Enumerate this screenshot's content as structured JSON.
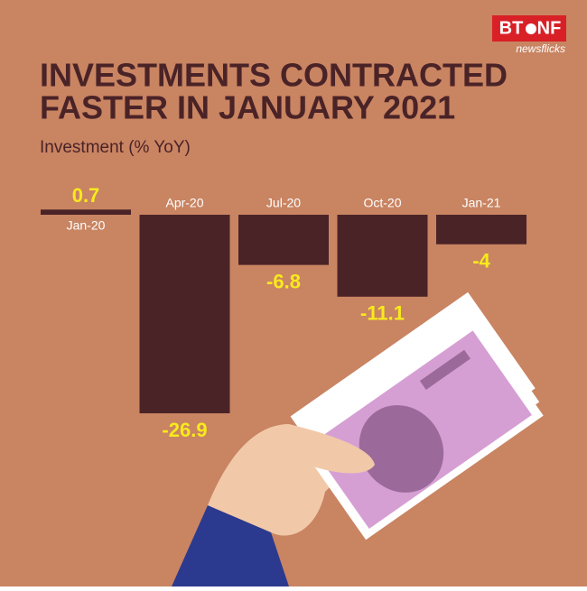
{
  "logo": {
    "left": "BT",
    "right": "NF",
    "tagline": "newsflicks"
  },
  "chart_data": {
    "type": "bar",
    "title": [
      "INVESTMENTS CONTRACTED",
      "FASTER IN JANUARY 2021"
    ],
    "subtitle": "Investment (% YoY)",
    "categories": [
      "Jan-20",
      "Apr-20",
      "Jul-20",
      "Oct-20",
      "Jan-21"
    ],
    "values": [
      0.7,
      -26.9,
      -6.8,
      -11.1,
      -4
    ],
    "color": "#4a2327",
    "label_color": "#f8ea1c"
  }
}
